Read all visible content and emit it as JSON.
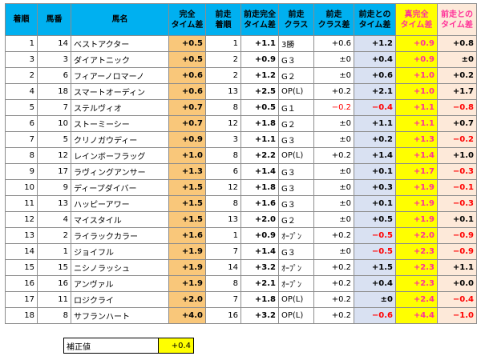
{
  "headers": [
    {
      "text": "着順"
    },
    {
      "text": "馬番"
    },
    {
      "text": "馬名"
    },
    {
      "text": "完全\nタイム差"
    },
    {
      "text": "前走\n着順"
    },
    {
      "text": "前走完全\nタイム差"
    },
    {
      "text": "前走\nクラス"
    },
    {
      "text": "前走\nクラス差"
    },
    {
      "text": "前走との\nタイム差"
    },
    {
      "text": "真完全\nタイム差"
    },
    {
      "text": "前走との\nタイム差"
    }
  ],
  "rows": [
    [
      "1",
      "14",
      "ベストアクター",
      "+0.5",
      "1",
      "+1.1",
      "3勝",
      "+0.6",
      "+1.2",
      "+0.9",
      "+0.8"
    ],
    [
      "3",
      "3",
      "ダイアトニック",
      "+0.5",
      "2",
      "+0.9",
      "G３",
      "±0",
      "+0.4",
      "+0.9",
      "±0"
    ],
    [
      "2",
      "6",
      "フィアーノロマーノ",
      "+0.6",
      "2",
      "+1.2",
      "G２",
      "±0",
      "+0.6",
      "+1.0",
      "+0.2"
    ],
    [
      "4",
      "18",
      "スマートオーディン",
      "+0.6",
      "13",
      "+2.5",
      "OP(L)",
      "+0.2",
      "+2.1",
      "+1.0",
      "+1.7"
    ],
    [
      "5",
      "7",
      "ステルヴィオ",
      "+0.7",
      "8",
      "+0.5",
      "G１",
      "−0.2",
      "−0.4",
      "+1.1",
      "−0.8"
    ],
    [
      "6",
      "10",
      "ストーミーシー",
      "+0.7",
      "12",
      "+1.8",
      "G２",
      "±0",
      "+1.1",
      "+1.1",
      "+0.7"
    ],
    [
      "7",
      "5",
      "クリノガウディー",
      "+0.9",
      "3",
      "+1.1",
      "G３",
      "±0",
      "+0.2",
      "+1.3",
      "−0.2"
    ],
    [
      "8",
      "12",
      "レインボーフラッグ",
      "+1.0",
      "8",
      "+2.2",
      "OP(L)",
      "+0.2",
      "+1.4",
      "+1.4",
      "+1.0"
    ],
    [
      "9",
      "17",
      "ラヴィングアンサー",
      "+1.3",
      "6",
      "+1.4",
      "G３",
      "±0",
      "+0.1",
      "+1.7",
      "−0.3"
    ],
    [
      "10",
      "9",
      "ディープダイバー",
      "+1.5",
      "12",
      "+1.8",
      "G３",
      "±0",
      "+0.3",
      "+1.9",
      "−0.1"
    ],
    [
      "11",
      "13",
      "ハッピーアワー",
      "+1.5",
      "8",
      "+1.6",
      "G３",
      "±0",
      "+0.1",
      "+1.9",
      "−0.3"
    ],
    [
      "12",
      "4",
      "マイスタイル",
      "+1.5",
      "13",
      "+2.0",
      "G２",
      "±0",
      "+0.5",
      "+1.9",
      "+0.1"
    ],
    [
      "13",
      "2",
      "ライラックカラー",
      "+1.6",
      "1",
      "+0.9",
      "ｵｰﾌﾟﾝ",
      "+0.2",
      "−0.5",
      "+2.0",
      "−0.9"
    ],
    [
      "14",
      "1",
      "ジョイフル",
      "+1.9",
      "7",
      "+1.4",
      "G３",
      "±0",
      "−0.5",
      "+2.3",
      "−0.9"
    ],
    [
      "15",
      "15",
      "ニシノラッシュ",
      "+1.9",
      "14",
      "+3.2",
      "ｵｰﾌﾟﾝ",
      "+0.2",
      "+1.5",
      "+2.3",
      "+1.1"
    ],
    [
      "16",
      "16",
      "アンヴァル",
      "+1.9",
      "8",
      "+2.1",
      "ｵｰﾌﾟﾝ",
      "+0.2",
      "+0.4",
      "+2.3",
      "+0.0"
    ],
    [
      "17",
      "11",
      "ロジクライ",
      "+2.0",
      "7",
      "+1.8",
      "OP(L)",
      "+0.2",
      "±0",
      "+2.4",
      "−0.4"
    ],
    [
      "18",
      "8",
      "サフランハート",
      "+4.0",
      "16",
      "+3.2",
      "OP(L)",
      "+0.2",
      "−0.6",
      "+4.4",
      "−1.0"
    ]
  ],
  "correction": {
    "label": "補正値",
    "value": "+0.4"
  },
  "colors": {
    "header": "#00b0f0",
    "orange": "#f9c77a",
    "lightblue": "#d9e1f2",
    "yellow": "#ffff00",
    "peach": "#fde9d9",
    "red": "#ff0000",
    "pink": "#ff3399"
  }
}
